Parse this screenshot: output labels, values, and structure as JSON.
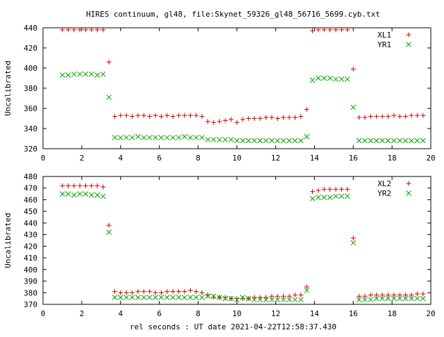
{
  "title": "HIRES continuum, gl48, file:Skynet_59326_gl48_56716_5699.cyb.txt",
  "xlabel": "rel seconds : UT date 2021-04-22T12:58:37.430",
  "colors": {
    "series1": "#cc0000",
    "series2": "#00a000",
    "axis": "#000000"
  },
  "chart_data": [
    {
      "type": "scatter",
      "ylabel": "Uncalibrated",
      "xlim": [
        0,
        20
      ],
      "ylim": [
        320,
        440
      ],
      "xticks": [
        0,
        2,
        4,
        6,
        8,
        10,
        12,
        14,
        16,
        18,
        20
      ],
      "yticks": [
        320,
        340,
        360,
        380,
        400,
        420,
        440
      ],
      "legend": "top-right",
      "series": [
        {
          "name": "XL1",
          "marker": "plus",
          "color": "#cc0000",
          "x": [
            1.0,
            1.3,
            1.6,
            1.9,
            2.2,
            2.5,
            2.8,
            3.1,
            3.4,
            3.7,
            4.0,
            4.3,
            4.6,
            4.9,
            5.2,
            5.5,
            5.8,
            6.1,
            6.4,
            6.7,
            7.0,
            7.3,
            7.6,
            7.9,
            8.2,
            8.5,
            8.8,
            9.1,
            9.4,
            9.7,
            10.0,
            10.3,
            10.6,
            10.9,
            11.2,
            11.5,
            11.8,
            12.1,
            12.4,
            12.7,
            13.0,
            13.3,
            13.6,
            13.9,
            14.2,
            14.5,
            14.8,
            15.1,
            15.4,
            15.7,
            16.0,
            16.3,
            16.6,
            16.9,
            17.2,
            17.5,
            17.8,
            18.1,
            18.4,
            18.7,
            19.0,
            19.3,
            19.6
          ],
          "y": [
            438,
            438,
            438,
            438,
            438,
            438,
            438,
            438,
            406,
            352,
            353,
            353,
            352,
            353,
            353,
            352,
            353,
            352,
            353,
            352,
            353,
            353,
            353,
            353,
            352,
            347,
            346,
            347,
            348,
            349,
            346,
            349,
            350,
            350,
            350,
            351,
            351,
            350,
            351,
            351,
            351,
            352,
            359,
            437,
            438,
            438,
            438,
            438,
            438,
            438,
            399,
            351,
            351,
            352,
            352,
            352,
            352,
            353,
            352,
            352,
            353,
            353,
            353
          ]
        },
        {
          "name": "YR1",
          "marker": "cross",
          "color": "#00a000",
          "x": [
            1.0,
            1.3,
            1.6,
            1.9,
            2.2,
            2.5,
            2.8,
            3.1,
            3.4,
            3.7,
            4.0,
            4.3,
            4.6,
            4.9,
            5.2,
            5.5,
            5.8,
            6.1,
            6.4,
            6.7,
            7.0,
            7.3,
            7.6,
            7.9,
            8.2,
            8.5,
            8.8,
            9.1,
            9.4,
            9.7,
            10.0,
            10.3,
            10.6,
            10.9,
            11.2,
            11.5,
            11.8,
            12.1,
            12.4,
            12.7,
            13.0,
            13.3,
            13.6,
            13.9,
            14.2,
            14.5,
            14.8,
            15.1,
            15.4,
            15.7,
            16.0,
            16.3,
            16.6,
            16.9,
            17.2,
            17.5,
            17.8,
            18.1,
            18.4,
            18.7,
            19.0,
            19.3,
            19.6
          ],
          "y": [
            393,
            393,
            394,
            394,
            394,
            394,
            393,
            394,
            371,
            331,
            331,
            331,
            331,
            332,
            331,
            331,
            331,
            331,
            331,
            331,
            331,
            332,
            331,
            331,
            331,
            329,
            329,
            329,
            329,
            329,
            328,
            328,
            328,
            328,
            328,
            328,
            328,
            328,
            328,
            328,
            328,
            328,
            332,
            388,
            390,
            390,
            390,
            389,
            389,
            389,
            361,
            328,
            328,
            328,
            328,
            328,
            328,
            328,
            328,
            328,
            328,
            328,
            328
          ]
        }
      ]
    },
    {
      "type": "scatter",
      "ylabel": "Uncalibrated",
      "xlim": [
        0,
        20
      ],
      "ylim": [
        370,
        480
      ],
      "xticks": [
        0,
        2,
        4,
        6,
        8,
        10,
        12,
        14,
        16,
        18,
        20
      ],
      "yticks": [
        370,
        380,
        390,
        400,
        410,
        420,
        430,
        440,
        450,
        460,
        470,
        480
      ],
      "legend": "top-right",
      "series": [
        {
          "name": "XL2",
          "marker": "plus",
          "color": "#cc0000",
          "x": [
            1.0,
            1.3,
            1.6,
            1.9,
            2.2,
            2.5,
            2.8,
            3.1,
            3.4,
            3.7,
            4.0,
            4.3,
            4.6,
            4.9,
            5.2,
            5.5,
            5.8,
            6.1,
            6.4,
            6.7,
            7.0,
            7.3,
            7.6,
            7.9,
            8.2,
            8.5,
            8.8,
            9.1,
            9.4,
            9.7,
            10.0,
            10.3,
            10.6,
            10.9,
            11.2,
            11.5,
            11.8,
            12.1,
            12.4,
            12.7,
            13.0,
            13.3,
            13.6,
            13.9,
            14.2,
            14.5,
            14.8,
            15.1,
            15.4,
            15.7,
            16.0,
            16.3,
            16.6,
            16.9,
            17.2,
            17.5,
            17.8,
            18.1,
            18.4,
            18.7,
            19.0,
            19.3,
            19.6
          ],
          "y": [
            472,
            472,
            472,
            472,
            472,
            472,
            472,
            471,
            438,
            381,
            380,
            380,
            380,
            381,
            381,
            381,
            380,
            380,
            381,
            381,
            381,
            381,
            382,
            381,
            380,
            378,
            376,
            376,
            376,
            375,
            375,
            375,
            375,
            376,
            376,
            376,
            377,
            377,
            377,
            377,
            378,
            378,
            385,
            467,
            468,
            469,
            469,
            469,
            469,
            469,
            427,
            377,
            377,
            378,
            378,
            378,
            378,
            378,
            378,
            378,
            378,
            379,
            379
          ]
        },
        {
          "name": "YR2",
          "marker": "cross",
          "color": "#00a000",
          "x": [
            1.0,
            1.3,
            1.6,
            1.9,
            2.2,
            2.5,
            2.8,
            3.1,
            3.4,
            3.7,
            4.0,
            4.3,
            4.6,
            4.9,
            5.2,
            5.5,
            5.8,
            6.1,
            6.4,
            6.7,
            7.0,
            7.3,
            7.6,
            7.9,
            8.2,
            8.5,
            8.8,
            9.1,
            9.4,
            9.7,
            10.0,
            10.3,
            10.6,
            10.9,
            11.2,
            11.5,
            11.8,
            12.1,
            12.4,
            12.7,
            13.0,
            13.3,
            13.6,
            13.9,
            14.2,
            14.5,
            14.8,
            15.1,
            15.4,
            15.7,
            16.0,
            16.3,
            16.6,
            16.9,
            17.2,
            17.5,
            17.8,
            18.1,
            18.4,
            18.7,
            19.0,
            19.3,
            19.6
          ],
          "y": [
            465,
            465,
            464,
            465,
            465,
            464,
            464,
            463,
            432,
            376,
            376,
            376,
            376,
            376,
            376,
            376,
            376,
            376,
            376,
            376,
            376,
            376,
            376,
            376,
            376,
            377,
            377,
            376,
            375,
            375,
            374,
            376,
            375,
            374,
            374,
            374,
            374,
            374,
            374,
            374,
            374,
            374,
            382,
            461,
            462,
            462,
            462,
            463,
            463,
            463,
            423,
            374,
            374,
            374,
            375,
            375,
            375,
            375,
            375,
            375,
            375,
            375,
            375
          ]
        }
      ]
    }
  ]
}
